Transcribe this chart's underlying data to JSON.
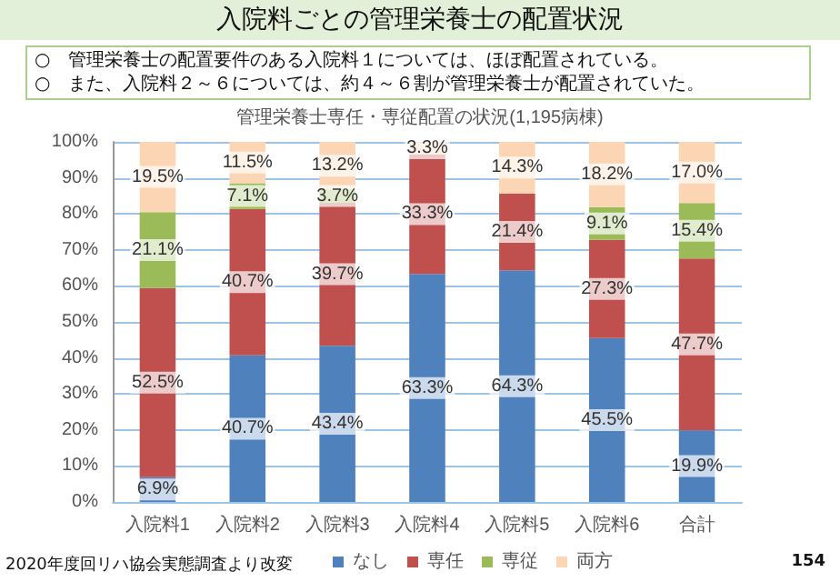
{
  "chart_data": {
    "type": "bar",
    "stacked": true,
    "title": "入院料ごとの管理栄養士の配置状況",
    "subtitle": "管理栄養士専任・専従配置の状況(1,195病棟)",
    "categories": [
      "入院料1",
      "入院料2",
      "入院料3",
      "入院料4",
      "入院料5",
      "入院料6",
      "合計"
    ],
    "series": [
      {
        "name": "なし",
        "color": "#4f81bd",
        "values": [
          6.9,
          40.7,
          43.4,
          63.3,
          64.3,
          45.5,
          19.9
        ],
        "value_labels": [
          "6.9%",
          "40.7%",
          "43.4%",
          "63.3%",
          "64.3%",
          "45.5%",
          "19.9%"
        ]
      },
      {
        "name": "専任",
        "color": "#c0504d",
        "values": [
          52.5,
          40.7,
          39.7,
          33.3,
          21.4,
          27.3,
          47.7
        ],
        "value_labels": [
          "52.5%",
          "40.7%",
          "39.7%",
          "33.3%",
          "21.4%",
          "27.3%",
          "47.7%"
        ]
      },
      {
        "name": "専従",
        "color": "#9bbb59",
        "values": [
          21.1,
          7.1,
          3.7,
          0,
          0,
          9.1,
          15.4
        ],
        "value_labels": [
          "21.1%",
          "7.1%",
          "3.7%",
          null,
          null,
          "9.1%",
          "15.4%"
        ]
      },
      {
        "name": "両方",
        "color": "#fcd5b5",
        "values": [
          19.5,
          11.5,
          13.2,
          3.3,
          14.3,
          18.2,
          17.0
        ],
        "value_labels": [
          "19.5%",
          "11.5%",
          "13.2%",
          "3.3%",
          "14.3%",
          "18.2%",
          "17.0%"
        ]
      }
    ],
    "ylim": [
      0,
      100
    ],
    "yticks": [
      {
        "value": 0,
        "label": "0%"
      },
      {
        "value": 10,
        "label": "10%"
      },
      {
        "value": 20,
        "label": "20%"
      },
      {
        "value": 30,
        "label": "30%"
      },
      {
        "value": 40,
        "label": "40%"
      },
      {
        "value": 50,
        "label": "50%"
      },
      {
        "value": 60,
        "label": "60%"
      },
      {
        "value": 70,
        "label": "70%"
      },
      {
        "value": 80,
        "label": "80%"
      },
      {
        "value": 90,
        "label": "90%"
      },
      {
        "value": 100,
        "label": "100%"
      }
    ],
    "grid": "y",
    "legend": "bottom",
    "annotations": [
      "○　管理栄養士の配置要件のある入院料１については、ほぼ配置されている。",
      "○　また、入院料２～６については、約４～６割が管理栄養士が配置されていた。",
      "2020年度回リハ協会実態調査より改変",
      "154"
    ]
  }
}
